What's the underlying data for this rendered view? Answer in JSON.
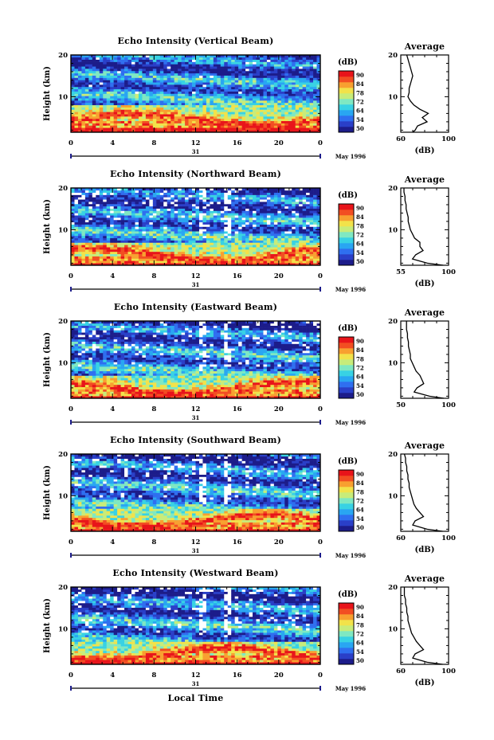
{
  "figure": {
    "xlabel": "Local Time",
    "date_label": "May 1996",
    "day_label": "31"
  },
  "colors": {
    "scale": [
      "#1c1c8a",
      "#2a3fc8",
      "#2f6ff0",
      "#29a6f2",
      "#38d2e4",
      "#7fe8c2",
      "#c8ec7a",
      "#f2e24a",
      "#f8a030",
      "#f24e22",
      "#e8141a"
    ],
    "frame": "#000000",
    "gaps": "#ffffff"
  },
  "chart_data": [
    {
      "type": "heatmap",
      "title": "Echo Intensity (Vertical Beam)",
      "xlabel": "",
      "ylabel": "Height (km)",
      "xlim": [
        0,
        24
      ],
      "ylim": [
        1.5,
        20
      ],
      "xticks": [
        "0",
        "4",
        "8",
        "12",
        "16",
        "20",
        "0"
      ],
      "yticks": [
        "10",
        "20"
      ],
      "colorbar": {
        "label": "(dB)",
        "range": [
          50,
          90
        ],
        "ticks": [
          "50",
          "54",
          "64",
          "72",
          "78",
          "84",
          "90"
        ]
      },
      "features": {
        "strong_layer_km": [
          2,
          8
        ],
        "gap_fraction": 0.01
      },
      "average": {
        "title": "Average",
        "xlabel": "(dB)",
        "xlim": [
          60,
          100
        ],
        "xticks": [
          "60",
          "100"
        ],
        "yticks": [
          "10",
          "20"
        ],
        "height": [
          1.5,
          2,
          3,
          4,
          5,
          6,
          7,
          8,
          9,
          10,
          11,
          12,
          13,
          14,
          15,
          16,
          17,
          18,
          19,
          20
        ],
        "value": [
          70,
          72,
          74,
          82,
          78,
          83,
          76,
          71,
          68,
          66,
          67,
          67,
          68,
          69,
          70,
          69,
          68,
          67,
          66,
          65
        ]
      }
    },
    {
      "type": "heatmap",
      "title": "Echo Intensity (Northward Beam)",
      "xlabel": "",
      "ylabel": "Height (km)",
      "xlim": [
        0,
        24
      ],
      "ylim": [
        1.5,
        20
      ],
      "xticks": [
        "0",
        "4",
        "8",
        "12",
        "16",
        "20",
        "0"
      ],
      "yticks": [
        "10",
        "20"
      ],
      "colorbar": {
        "label": "(dB)",
        "range": [
          50,
          90
        ],
        "ticks": [
          "50",
          "54",
          "64",
          "72",
          "78",
          "84",
          "90"
        ]
      },
      "features": {
        "strong_layer_km": [
          1.5,
          7
        ],
        "gap_fraction": 0.07
      },
      "average": {
        "title": "Average",
        "xlabel": "(dB)",
        "xlim": [
          55,
          100
        ],
        "xticks": [
          "55",
          "100"
        ],
        "yticks": [
          "10",
          "20"
        ],
        "height": [
          1.5,
          2,
          3,
          4,
          5,
          6,
          7,
          8,
          9,
          10,
          11,
          12,
          13,
          14,
          15,
          16,
          17,
          18,
          19,
          20
        ],
        "value": [
          95,
          80,
          66,
          69,
          76,
          73,
          73,
          68,
          66,
          64,
          63,
          62,
          62,
          61,
          60,
          60,
          59,
          59,
          58,
          58
        ]
      }
    },
    {
      "type": "heatmap",
      "title": "Echo Intensity (Eastward Beam)",
      "xlabel": "",
      "ylabel": "Height (km)",
      "xlim": [
        0,
        24
      ],
      "ylim": [
        1.5,
        20
      ],
      "xticks": [
        "0",
        "4",
        "8",
        "12",
        "16",
        "20",
        "0"
      ],
      "yticks": [
        "10",
        "20"
      ],
      "colorbar": {
        "label": "(dB)",
        "range": [
          50,
          90
        ],
        "ticks": [
          "50",
          "54",
          "64",
          "72",
          "78",
          "84",
          "90"
        ]
      },
      "features": {
        "strong_layer_km": [
          1.5,
          7
        ],
        "gap_fraction": 0.07
      },
      "average": {
        "title": "Average",
        "xlabel": "",
        "xlim": [
          50,
          100
        ],
        "xticks": [
          "50",
          "100"
        ],
        "yticks": [
          "10",
          "20"
        ],
        "height": [
          1.5,
          2,
          3,
          4,
          5,
          6,
          7,
          8,
          9,
          10,
          11,
          12,
          13,
          14,
          15,
          16,
          17,
          18,
          19,
          20
        ],
        "value": [
          95,
          80,
          64,
          67,
          74,
          72,
          70,
          66,
          64,
          62,
          60,
          60,
          59,
          58,
          58,
          57,
          57,
          56,
          56,
          56
        ]
      }
    },
    {
      "type": "heatmap",
      "title": "Echo Intensity (Southward Beam)",
      "xlabel": "",
      "ylabel": "Height (km)",
      "xlim": [
        0,
        24
      ],
      "ylim": [
        1.5,
        20
      ],
      "xticks": [
        "0",
        "4",
        "8",
        "12",
        "16",
        "20",
        "0"
      ],
      "yticks": [
        "10",
        "20"
      ],
      "colorbar": {
        "label": "(dB)",
        "range": [
          50,
          90
        ],
        "ticks": [
          "50",
          "54",
          "64",
          "72",
          "78",
          "84",
          "90"
        ]
      },
      "features": {
        "strong_layer_km": [
          1.5,
          7
        ],
        "gap_fraction": 0.06
      },
      "average": {
        "title": "Average",
        "xlabel": "(dB)",
        "xlim": [
          60,
          100
        ],
        "xticks": [
          "60",
          "100"
        ],
        "yticks": [
          "10",
          "20"
        ],
        "height": [
          1.5,
          2,
          3,
          4,
          5,
          6,
          7,
          8,
          9,
          10,
          11,
          12,
          13,
          14,
          15,
          16,
          17,
          18,
          19,
          20
        ],
        "value": [
          95,
          82,
          70,
          72,
          79,
          76,
          73,
          71,
          70,
          69,
          68,
          67,
          67,
          66,
          66,
          65,
          65,
          64,
          64,
          63
        ]
      }
    },
    {
      "type": "heatmap",
      "title": "Echo Intensity (Westward Beam)",
      "xlabel": "",
      "ylabel": "Height (km)",
      "xlim": [
        0,
        24
      ],
      "ylim": [
        1.5,
        20
      ],
      "xticks": [
        "0",
        "4",
        "8",
        "12",
        "16",
        "20",
        "0"
      ],
      "yticks": [
        "10",
        "20"
      ],
      "colorbar": {
        "label": "(dB)",
        "range": [
          50,
          90
        ],
        "ticks": [
          "50",
          "54",
          "64",
          "72",
          "78",
          "84",
          "90"
        ]
      },
      "features": {
        "strong_layer_km": [
          1.5,
          7
        ],
        "gap_fraction": 0.07
      },
      "average": {
        "title": "Average",
        "xlabel": "(dB)",
        "xlim": [
          60,
          100
        ],
        "xticks": [
          "60",
          "100"
        ],
        "yticks": [
          "10",
          "20"
        ],
        "height": [
          1.5,
          2,
          3,
          4,
          5,
          6,
          7,
          8,
          9,
          10,
          11,
          12,
          13,
          14,
          15,
          16,
          17,
          18,
          19,
          20
        ],
        "value": [
          95,
          82,
          70,
          72,
          79,
          76,
          73,
          71,
          69,
          68,
          67,
          66,
          66,
          65,
          65,
          64,
          64,
          63,
          63,
          63
        ]
      }
    }
  ]
}
